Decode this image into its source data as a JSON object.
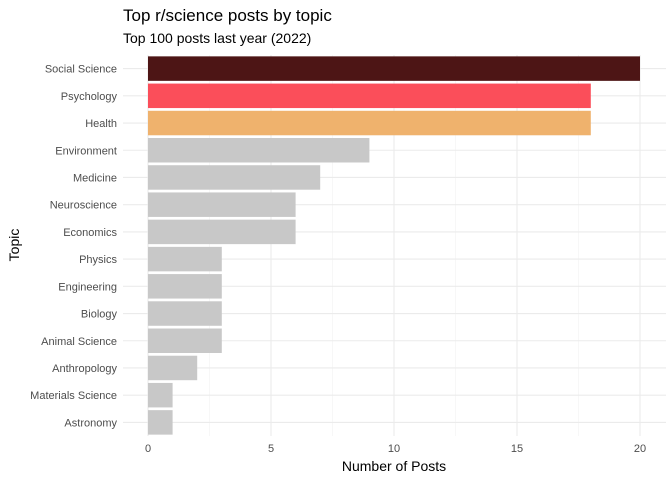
{
  "chart_data": {
    "type": "bar",
    "orientation": "horizontal",
    "title": "Top r/science posts by topic",
    "subtitle": "Top 100 posts last year (2022)",
    "xlabel": "Number of Posts",
    "ylabel": "Topic",
    "xlim": [
      0,
      20
    ],
    "xticks": [
      0,
      5,
      10,
      15,
      20
    ],
    "grid": true,
    "legend": "none",
    "categories": [
      "Social Science",
      "Psychology",
      "Health",
      "Environment",
      "Medicine",
      "Neuroscience",
      "Economics",
      "Physics",
      "Engineering",
      "Biology",
      "Animal Science",
      "Anthropology",
      "Materials Science",
      "Astronomy"
    ],
    "values": [
      20,
      18,
      18,
      9,
      7,
      6,
      6,
      3,
      3,
      3,
      3,
      2,
      1,
      1
    ],
    "colors": [
      "#4d1515",
      "#fb4e5a",
      "#efb26d",
      "#c8c8c8",
      "#c8c8c8",
      "#c8c8c8",
      "#c8c8c8",
      "#c8c8c8",
      "#c8c8c8",
      "#c8c8c8",
      "#c8c8c8",
      "#c8c8c8",
      "#c8c8c8",
      "#c8c8c8"
    ]
  }
}
